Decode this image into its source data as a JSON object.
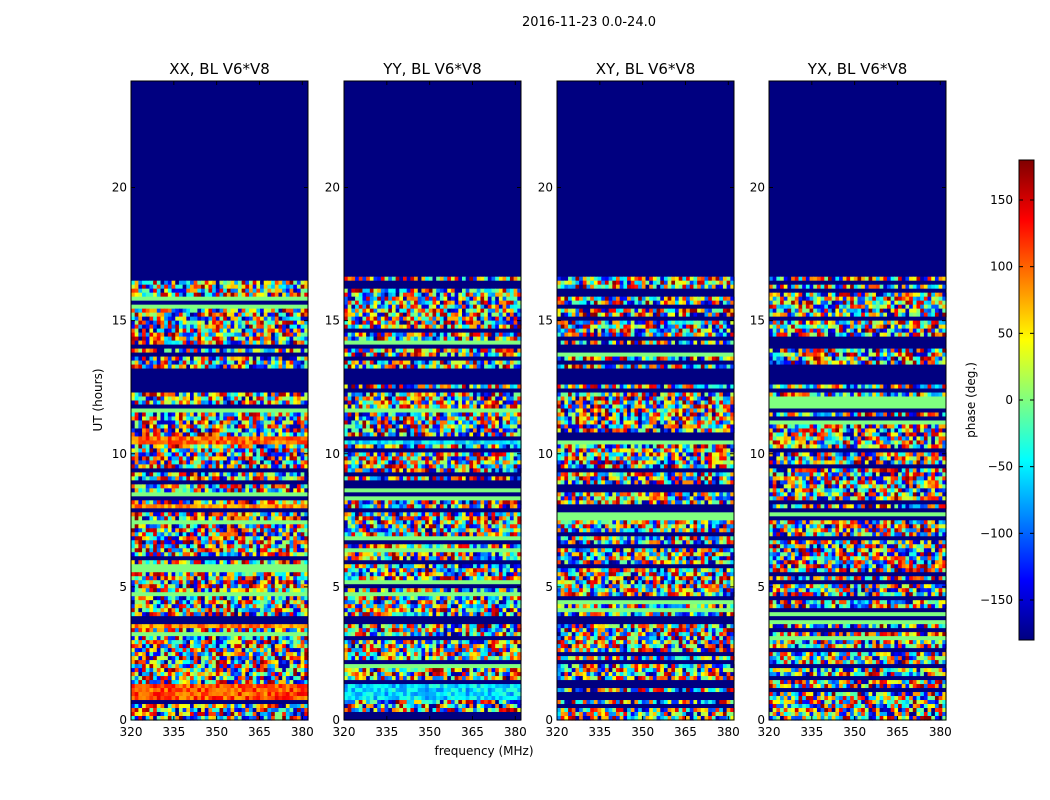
{
  "chart_data": {
    "type": "heatmap",
    "suptitle": "2016-11-23 0.0-24.0",
    "xlabel": "frequency (MHz)",
    "ylabel": "UT (hours)",
    "xlim": [
      320,
      382
    ],
    "ylim": [
      0,
      24
    ],
    "xticks": [
      320,
      335,
      350,
      365,
      380
    ],
    "yticks": [
      0,
      5,
      10,
      15,
      20
    ],
    "colorbar": {
      "label": "phase (deg.)",
      "range": [
        -180,
        180
      ],
      "ticks": [
        150,
        100,
        50,
        0,
        -50,
        -100,
        -150
      ],
      "tick_labels": [
        "150",
        "100",
        "50",
        "0",
        "−50",
        "−100",
        "−150"
      ],
      "colormap": "jet"
    },
    "flagged_value": -180,
    "flagged_intervals_ut": [
      [
        12.6,
        13.2
      ],
      [
        13.9,
        14.1
      ],
      [
        16.7,
        24.0
      ],
      [
        7.75,
        7.95
      ],
      [
        3.8,
        3.95
      ]
    ],
    "panels": [
      {
        "title": "XX, BL V6*V8",
        "phase_bias_bands": [
          {
            "ut": [
              0.8,
              1.3
            ],
            "phase": 110
          },
          {
            "ut": [
              10.3,
              10.6
            ],
            "phase": 100
          },
          {
            "ut": [
              7.9,
              8.05
            ],
            "phase": 90
          },
          {
            "ut": [
              3.5,
              3.7
            ],
            "phase": 90
          }
        ]
      },
      {
        "title": "YY, BL V6*V8",
        "phase_bias_bands": [
          {
            "ut": [
              0.8,
              1.3
            ],
            "phase": -60
          },
          {
            "ut": [
              10.3,
              10.6
            ],
            "phase": -60
          }
        ]
      },
      {
        "title": "XY, BL V6*V8",
        "phase_bias_bands": []
      },
      {
        "title": "YX, BL V6*V8",
        "phase_bias_bands": []
      }
    ]
  }
}
